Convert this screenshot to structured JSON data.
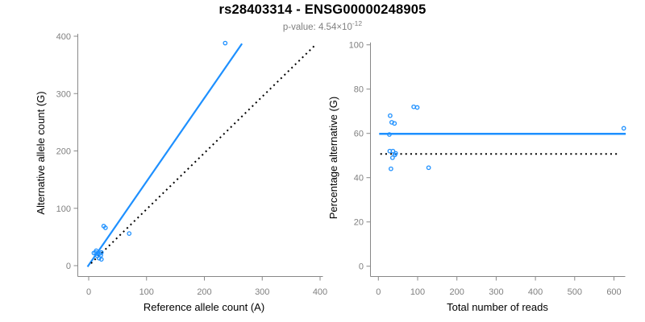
{
  "header": {
    "title": "rs28403314 - ENSG00000248905",
    "subtitle_prefix": "p-value: 4.54×10",
    "subtitle_exponent": "-12"
  },
  "colors": {
    "accent_blue": "#1E90FF",
    "axis_gray": "#888888",
    "tick_label_gray": "#808080",
    "subtitle_gray": "#7f7f7f",
    "identity_black": "#000000"
  },
  "chart_data": [
    {
      "type": "scatter",
      "xlabel": "Reference allele count (A)",
      "ylabel": "Alternative allele count (G)",
      "xlim": [
        0,
        400
      ],
      "ylim": [
        0,
        400
      ],
      "xticks": [
        0,
        100,
        200,
        300,
        400
      ],
      "yticks": [
        0,
        100,
        200,
        300,
        400
      ],
      "grid": false,
      "points": [
        [
          9,
          22
        ],
        [
          13,
          26
        ],
        [
          12,
          23
        ],
        [
          15,
          21
        ],
        [
          15,
          17
        ],
        [
          19,
          21
        ],
        [
          22,
          23
        ],
        [
          21,
          18
        ],
        [
          18,
          13
        ],
        [
          22,
          11
        ],
        [
          26,
          69
        ],
        [
          29,
          66
        ],
        [
          70,
          56
        ],
        [
          236,
          388
        ]
      ],
      "lines": [
        {
          "name": "fit-line",
          "style": "solid",
          "color": "#1E90FF",
          "from": [
            -2,
            -2
          ],
          "to": [
            265,
            387
          ]
        },
        {
          "name": "identity-line",
          "style": "dotted",
          "color": "#000000",
          "from": [
            4,
            4
          ],
          "to": [
            390,
            383
          ]
        }
      ]
    },
    {
      "type": "scatter",
      "xlabel": "Total number of reads",
      "ylabel": "Percentage alternative (G)",
      "xlim": [
        0,
        600
      ],
      "ylim": [
        0,
        100
      ],
      "xticks": [
        0,
        100,
        200,
        300,
        400,
        500,
        600
      ],
      "yticks": [
        0,
        20,
        40,
        60,
        80,
        100
      ],
      "grid": false,
      "points": [
        [
          30,
          68
        ],
        [
          34,
          65
        ],
        [
          41,
          64.5
        ],
        [
          28,
          59.5
        ],
        [
          29,
          52
        ],
        [
          37,
          52
        ],
        [
          44,
          51
        ],
        [
          42,
          50.3
        ],
        [
          36,
          49
        ],
        [
          32,
          44
        ],
        [
          128,
          44.5
        ],
        [
          90,
          72
        ],
        [
          99,
          71.7
        ],
        [
          625,
          62.3
        ]
      ],
      "lines": [
        {
          "name": "fit-line",
          "style": "solid",
          "color": "#1E90FF",
          "from": [
            2,
            59.8
          ],
          "to": [
            630,
            59.8
          ]
        },
        {
          "name": "identity-line",
          "style": "dotted",
          "color": "#000000",
          "from": [
            5,
            50.7
          ],
          "to": [
            615,
            50.7
          ]
        }
      ]
    }
  ]
}
